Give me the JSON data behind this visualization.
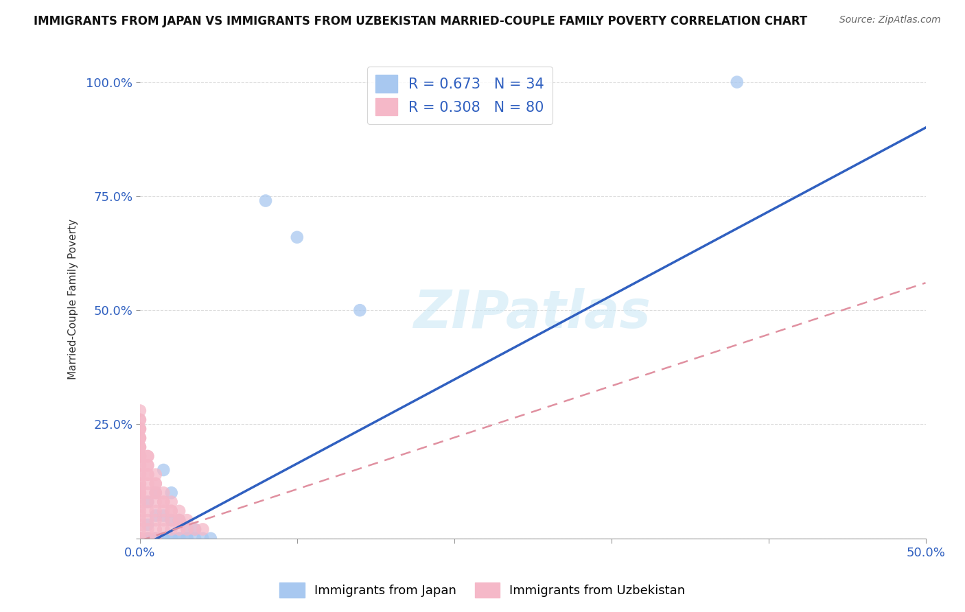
{
  "title": "IMMIGRANTS FROM JAPAN VS IMMIGRANTS FROM UZBEKISTAN MARRIED-COUPLE FAMILY POVERTY CORRELATION CHART",
  "source": "Source: ZipAtlas.com",
  "xlim": [
    0.0,
    0.5
  ],
  "ylim": [
    0.0,
    1.05
  ],
  "watermark": "ZIPatlas",
  "japan_R": 0.673,
  "japan_N": 34,
  "uzbekistan_R": 0.308,
  "uzbekistan_N": 80,
  "japan_color": "#a8c8f0",
  "uzbekistan_color": "#f5b8c8",
  "japan_line_color": "#3060c0",
  "uzbekistan_line_color": "#e090a0",
  "japan_line_x0": 0.0,
  "japan_line_y0": -0.02,
  "japan_line_x1": 0.5,
  "japan_line_y1": 0.9,
  "uzbekistan_line_x0": 0.0,
  "uzbekistan_line_y0": -0.005,
  "uzbekistan_line_x1": 0.5,
  "uzbekistan_line_y1": 0.56,
  "japan_scatter_x": [
    0.38,
    0.08,
    0.1,
    0.14,
    0.005,
    0.01,
    0.015,
    0.02,
    0.025,
    0.03,
    0.035,
    0.04,
    0.045,
    0.005,
    0.01,
    0.015,
    0.02,
    0.025,
    0.03,
    0.0,
    0.0,
    0.0,
    0.0,
    0.005,
    0.01,
    0.015,
    0.02,
    0.025,
    0.03,
    0.035,
    0.005,
    0.01,
    0.015,
    0.02
  ],
  "japan_scatter_y": [
    1.0,
    0.74,
    0.66,
    0.5,
    0.0,
    0.0,
    0.0,
    0.0,
    0.0,
    0.0,
    0.0,
    0.0,
    0.0,
    0.0,
    0.0,
    0.0,
    0.0,
    0.0,
    0.0,
    0.0,
    0.0,
    0.0,
    0.0,
    0.03,
    0.05,
    0.05,
    0.04,
    0.04,
    0.02,
    0.02,
    0.08,
    0.1,
    0.15,
    0.1
  ],
  "uzbekistan_scatter_x": [
    0.0,
    0.0,
    0.0,
    0.0,
    0.0,
    0.0,
    0.0,
    0.0,
    0.0,
    0.0,
    0.0,
    0.0,
    0.0,
    0.0,
    0.0,
    0.0,
    0.0,
    0.0,
    0.0,
    0.0,
    0.0,
    0.0,
    0.0,
    0.0,
    0.0,
    0.0,
    0.005,
    0.005,
    0.005,
    0.005,
    0.005,
    0.005,
    0.005,
    0.005,
    0.005,
    0.005,
    0.01,
    0.01,
    0.01,
    0.01,
    0.01,
    0.01,
    0.01,
    0.01,
    0.015,
    0.015,
    0.015,
    0.015,
    0.015,
    0.02,
    0.02,
    0.02,
    0.02,
    0.025,
    0.025,
    0.025,
    0.03,
    0.03,
    0.035,
    0.04,
    0.0,
    0.0,
    0.0,
    0.0,
    0.0,
    0.0,
    0.005,
    0.005,
    0.005,
    0.01,
    0.01,
    0.015,
    0.02,
    0.025,
    0.0,
    0.0,
    0.0,
    0.0,
    0.0,
    0.0
  ],
  "uzbekistan_scatter_y": [
    0.0,
    0.0,
    0.0,
    0.0,
    0.0,
    0.0,
    0.02,
    0.03,
    0.04,
    0.05,
    0.06,
    0.07,
    0.08,
    0.09,
    0.1,
    0.11,
    0.12,
    0.14,
    0.16,
    0.18,
    0.2,
    0.22,
    0.24,
    0.26,
    0.2,
    0.18,
    0.0,
    0.02,
    0.04,
    0.06,
    0.08,
    0.1,
    0.12,
    0.14,
    0.16,
    0.18,
    0.0,
    0.02,
    0.04,
    0.06,
    0.08,
    0.1,
    0.12,
    0.14,
    0.02,
    0.04,
    0.06,
    0.08,
    0.1,
    0.02,
    0.04,
    0.06,
    0.08,
    0.02,
    0.04,
    0.06,
    0.02,
    0.04,
    0.02,
    0.02,
    0.22,
    0.24,
    0.16,
    0.14,
    0.12,
    0.1,
    0.18,
    0.16,
    0.14,
    0.12,
    0.1,
    0.08,
    0.06,
    0.04,
    0.28,
    0.26,
    0.24,
    0.22,
    0.2,
    0.18
  ]
}
